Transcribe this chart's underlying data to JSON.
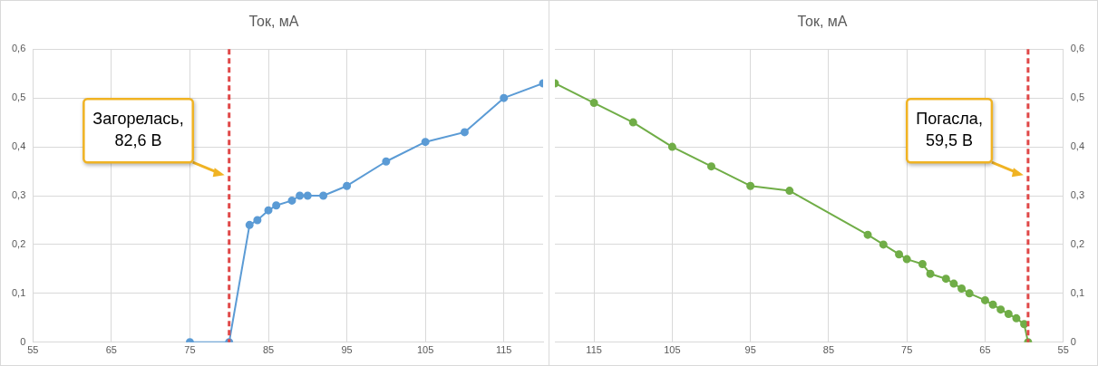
{
  "chart_data": [
    {
      "type": "line",
      "title": "Ток, мА",
      "xlim": [
        55,
        120
      ],
      "xticks": [
        55,
        65,
        75,
        85,
        95,
        105,
        115
      ],
      "ylim": [
        0,
        0.6
      ],
      "yticks": [
        0,
        {
          "value": 0.1,
          "label": "0,1"
        },
        {
          "value": 0.2,
          "label": "0,2"
        },
        {
          "value": 0.3,
          "label": "0,3"
        },
        {
          "value": 0.4,
          "label": "0,4"
        },
        {
          "value": 0.5,
          "label": "0,5"
        },
        {
          "value": 0.6,
          "label": "0,6"
        }
      ],
      "grid": true,
      "legend": false,
      "marker": "circle",
      "line_style": "solid",
      "series": [
        {
          "color": "#5b9bd5",
          "x": [
            75,
            80,
            82.6,
            83.6,
            85,
            86,
            88,
            89,
            90,
            92,
            95,
            100,
            105,
            110,
            115,
            120
          ],
          "values": [
            0,
            0,
            0.24,
            0.25,
            0.27,
            0.28,
            0.29,
            0.3,
            0.3,
            0.3,
            0.32,
            0.37,
            0.41,
            0.43,
            0.5,
            0.53
          ]
        }
      ],
      "ref_lines": [
        {
          "axis": "x",
          "value": 80,
          "label": "Загорелась, 82,6 В",
          "color": "#e04848",
          "line_style": "dashed"
        }
      ]
    },
    {
      "type": "line",
      "title": "Ток, мА",
      "xlim": [
        120,
        55
      ],
      "xticks": [
        115,
        105,
        95,
        85,
        75,
        65,
        55
      ],
      "y2lim": [
        0,
        0.6
      ],
      "y2ticks": [
        0,
        {
          "value": 0.1,
          "label": "0,1"
        },
        {
          "value": 0.2,
          "label": "0,2"
        },
        {
          "value": 0.3,
          "label": "0,3"
        },
        {
          "value": 0.4,
          "label": "0,4"
        },
        {
          "value": 0.5,
          "label": "0,5"
        },
        {
          "value": 0.6,
          "label": "0,6"
        }
      ],
      "grid": true,
      "legend": false,
      "marker": "circle",
      "line_style": "solid",
      "series": [
        {
          "color": "#70ad47",
          "axis": "y2",
          "x": [
            120,
            115,
            110,
            105,
            100,
            95,
            90,
            80,
            78,
            76,
            75,
            73,
            72,
            70,
            69,
            68,
            67,
            65,
            64,
            63,
            62,
            61,
            60,
            59.5
          ],
          "values": [
            0.53,
            0.49,
            0.45,
            0.4,
            0.36,
            0.32,
            0.31,
            0.22,
            0.2,
            0.18,
            0.17,
            0.16,
            0.14,
            0.13,
            0.12,
            0.11,
            0.1,
            0.086,
            0.077,
            0.067,
            0.058,
            0.049,
            0.037,
            0
          ]
        }
      ],
      "ref_lines": [
        {
          "axis": "x",
          "value": 59.5,
          "label": "Погасла, 59,5 В",
          "color": "#e04848",
          "line_style": "dashed"
        }
      ]
    }
  ]
}
